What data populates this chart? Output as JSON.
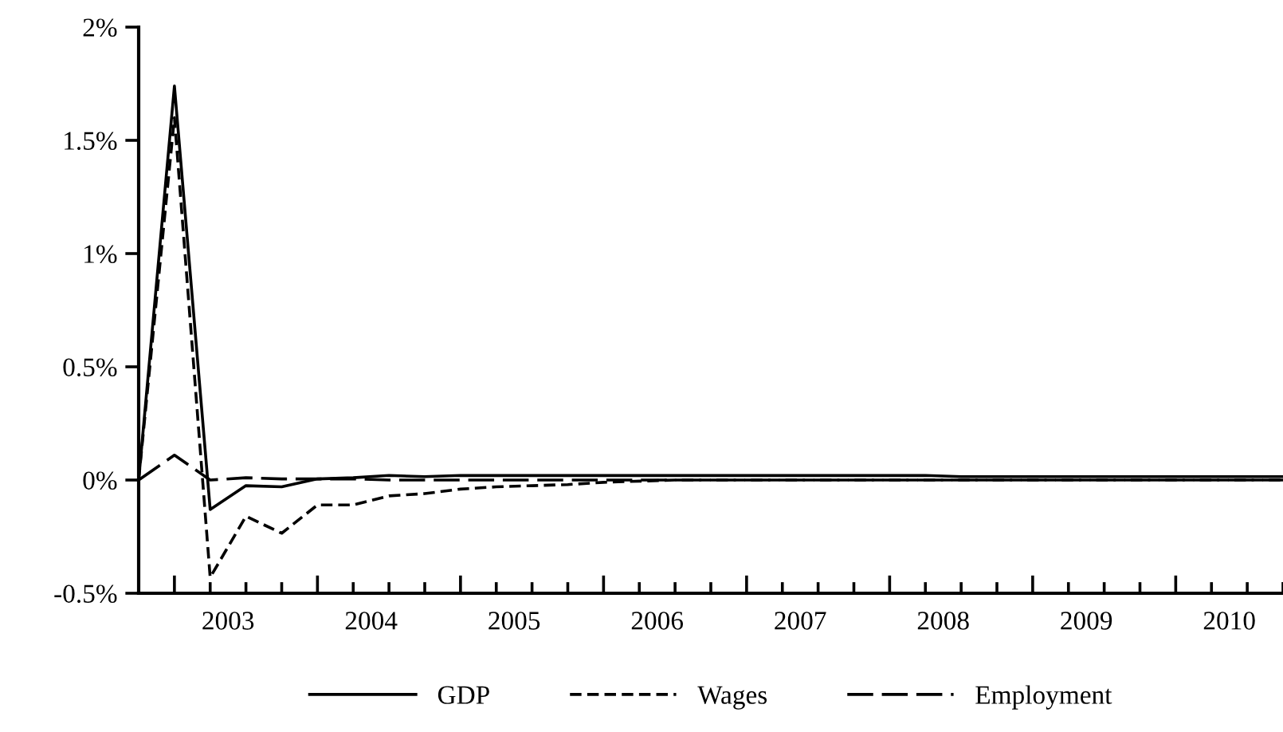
{
  "chart_data": {
    "type": "line",
    "x": [
      2002.75,
      2003.0,
      2003.25,
      2003.5,
      2003.75,
      2004.0,
      2004.25,
      2004.5,
      2004.75,
      2005.0,
      2005.25,
      2005.5,
      2005.75,
      2006.0,
      2006.25,
      2006.5,
      2006.75,
      2007.0,
      2007.25,
      2007.5,
      2007.75,
      2008.0,
      2008.25,
      2008.5,
      2008.75,
      2009.0,
      2009.25,
      2009.5,
      2009.75,
      2010.0,
      2010.25,
      2010.5,
      2010.75
    ],
    "series": [
      {
        "name": "GDP",
        "color": "#000000",
        "line_style": "solid",
        "values": [
          0,
          1.74,
          -0.13,
          -0.025,
          -0.03,
          0.005,
          0.01,
          0.02,
          0.015,
          0.02,
          0.02,
          0.02,
          0.02,
          0.02,
          0.02,
          0.02,
          0.02,
          0.02,
          0.02,
          0.02,
          0.02,
          0.02,
          0.02,
          0.015,
          0.015,
          0.015,
          0.015,
          0.015,
          0.015,
          0.015,
          0.015,
          0.015,
          0.015
        ]
      },
      {
        "name": "Wages",
        "color": "#000000",
        "line_style": "dashed",
        "values": [
          0,
          1.6,
          -0.43,
          -0.16,
          -0.235,
          -0.11,
          -0.11,
          -0.07,
          -0.06,
          -0.04,
          -0.03,
          -0.025,
          -0.02,
          -0.01,
          -0.005,
          0,
          0,
          0,
          0,
          0,
          0,
          0,
          0,
          0,
          0,
          0,
          0,
          0,
          0,
          0,
          0,
          0,
          0
        ]
      },
      {
        "name": "Employment",
        "color": "#000000",
        "line_style": "longdash",
        "values": [
          0,
          0.11,
          0,
          0.01,
          0.005,
          0.005,
          0.005,
          0,
          0,
          0,
          0,
          0,
          0,
          0,
          0,
          0,
          0,
          0,
          0,
          0,
          0,
          0,
          0,
          0,
          0,
          0,
          0,
          0,
          0,
          0,
          0,
          0,
          0
        ]
      }
    ],
    "xlim": [
      2002.75,
      2010.75
    ],
    "xticks": [
      {
        "value": 2002.75,
        "label": null
      },
      {
        "value": 2003.0,
        "label": null
      },
      {
        "value": 2003.25,
        "label": null
      },
      {
        "value": 2003.5,
        "label": null
      },
      {
        "value": 2003.75,
        "label": null
      },
      {
        "value": 2004.0,
        "label": null
      },
      {
        "value": 2004.25,
        "label": null
      },
      {
        "value": 2004.5,
        "label": null
      },
      {
        "value": 2004.75,
        "label": null
      },
      {
        "value": 2005.0,
        "label": null
      },
      {
        "value": 2005.25,
        "label": null
      },
      {
        "value": 2005.5,
        "label": null
      },
      {
        "value": 2005.75,
        "label": null
      },
      {
        "value": 2006.0,
        "label": null
      },
      {
        "value": 2006.25,
        "label": null
      },
      {
        "value": 2006.5,
        "label": null
      },
      {
        "value": 2006.75,
        "label": null
      },
      {
        "value": 2007.0,
        "label": null
      },
      {
        "value": 2007.25,
        "label": null
      },
      {
        "value": 2007.5,
        "label": null
      },
      {
        "value": 2007.75,
        "label": null
      },
      {
        "value": 2008.0,
        "label": null
      },
      {
        "value": 2008.25,
        "label": null
      },
      {
        "value": 2008.5,
        "label": null
      },
      {
        "value": 2008.75,
        "label": null
      },
      {
        "value": 2009.0,
        "label": null
      },
      {
        "value": 2009.25,
        "label": null
      },
      {
        "value": 2009.5,
        "label": null
      },
      {
        "value": 2009.75,
        "label": null
      },
      {
        "value": 2010.0,
        "label": null
      },
      {
        "value": 2010.25,
        "label": null
      },
      {
        "value": 2010.5,
        "label": null
      },
      {
        "value": 2010.75,
        "label": null
      },
      {
        "value": 2003.375,
        "label": "2003"
      },
      {
        "value": 2004.375,
        "label": "2004"
      },
      {
        "value": 2005.375,
        "label": "2005"
      },
      {
        "value": 2006.375,
        "label": "2006"
      },
      {
        "value": 2007.375,
        "label": "2007"
      },
      {
        "value": 2008.375,
        "label": "2008"
      },
      {
        "value": 2009.375,
        "label": "2009"
      },
      {
        "value": 2010.375,
        "label": "2010"
      }
    ],
    "ylim": [
      -0.5,
      2
    ],
    "yticks": [
      {
        "value": -0.5,
        "label": "-0.5%"
      },
      {
        "value": 0,
        "label": "0%"
      },
      {
        "value": 0.5,
        "label": "0.5%"
      },
      {
        "value": 1,
        "label": "1%"
      },
      {
        "value": 1.5,
        "label": "1.5%"
      },
      {
        "value": 2,
        "label": "2%"
      }
    ],
    "grid": false,
    "legend": "bottom",
    "marker": "none"
  }
}
